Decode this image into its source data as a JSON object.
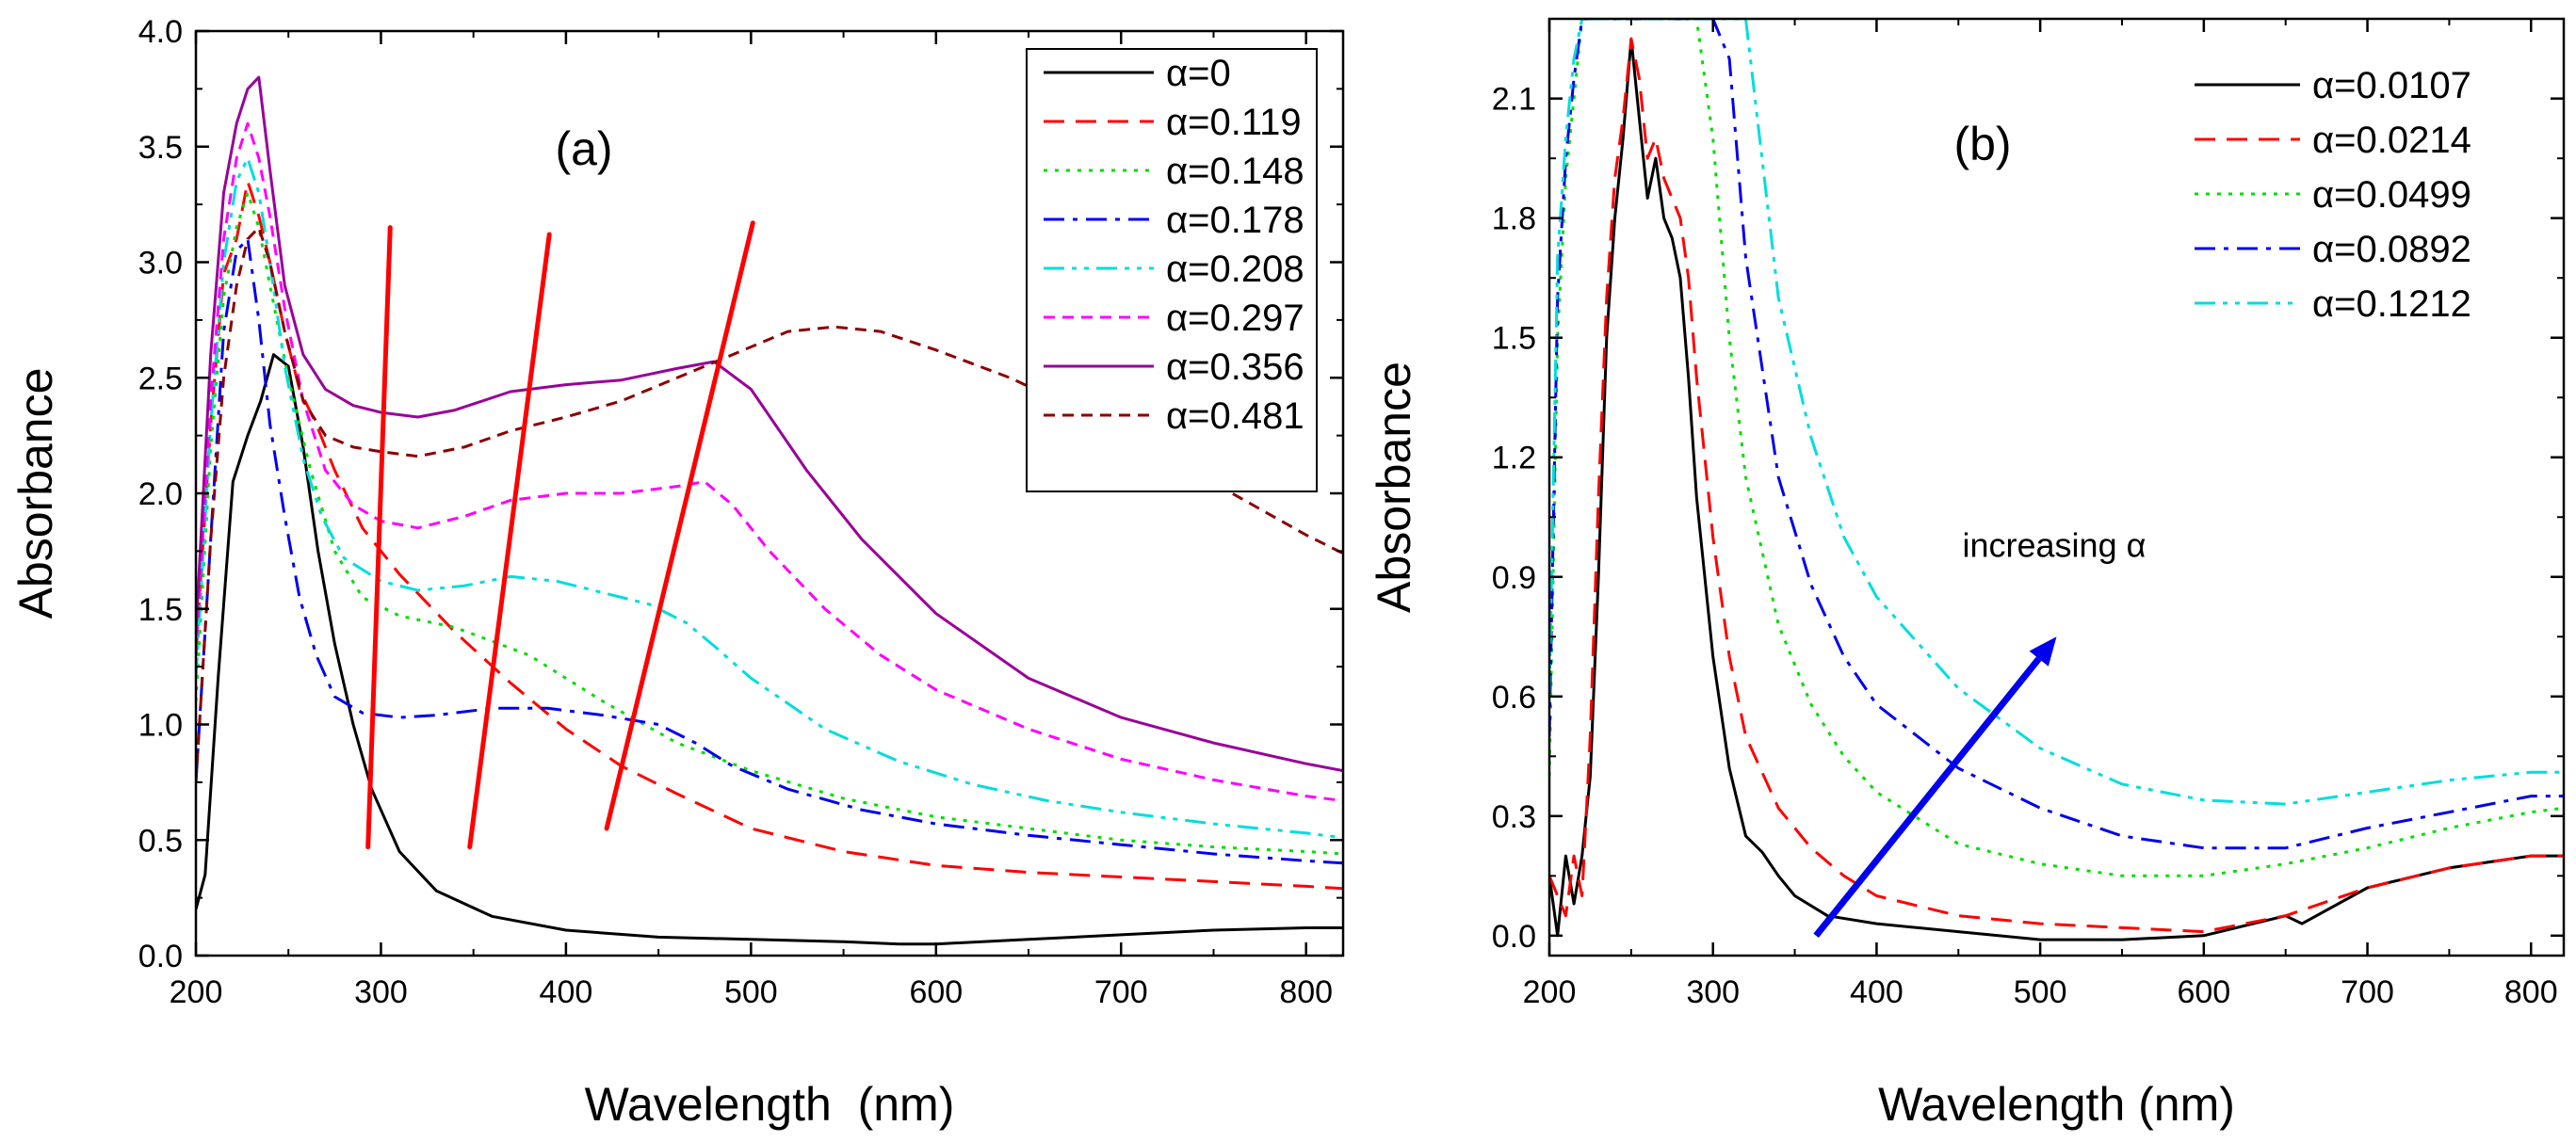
{
  "chart_data": [
    {
      "type": "line",
      "panel_label": "(a)",
      "xlabel": "Wavelength  (nm)",
      "ylabel": "Absorbance",
      "xlim": [
        200,
        820
      ],
      "ylim": [
        0,
        4.0
      ],
      "xticks": [
        200,
        300,
        400,
        500,
        600,
        700,
        800
      ],
      "xtick_labels": [
        "200",
        "300",
        "400",
        "500",
        "600",
        "700",
        "800"
      ],
      "yticks": [
        0,
        0.5,
        1.0,
        1.5,
        2.0,
        2.5,
        3.0,
        3.5,
        4.0
      ],
      "ytick_labels": [
        "0.0",
        "0.5",
        "1.0",
        "1.5",
        "2.0",
        "2.5",
        "3.0",
        "3.5",
        "4.0"
      ],
      "legend_position": "top-right",
      "legend_boxed": true,
      "series": [
        {
          "name": "α=0",
          "color": "#000000",
          "dash": "solid",
          "x": [
            200,
            205,
            212,
            220,
            228,
            235,
            242,
            250,
            258,
            266,
            275,
            285,
            295,
            310,
            330,
            360,
            400,
            450,
            500,
            550,
            580,
            600,
            650,
            700,
            750,
            800,
            820
          ],
          "y": [
            0.2,
            0.35,
            1.2,
            2.05,
            2.25,
            2.4,
            2.6,
            2.55,
            2.2,
            1.75,
            1.35,
            1.0,
            0.72,
            0.45,
            0.28,
            0.17,
            0.11,
            0.08,
            0.07,
            0.06,
            0.05,
            0.05,
            0.07,
            0.09,
            0.11,
            0.12,
            0.12
          ]
        },
        {
          "name": "α=0.119",
          "color": "#ff0000",
          "dash": "long",
          "x": [
            200,
            208,
            215,
            222,
            228,
            234,
            240,
            248,
            256,
            265,
            275,
            290,
            310,
            340,
            370,
            400,
            430,
            460,
            500,
            550,
            600,
            650,
            700,
            750,
            800,
            820
          ],
          "y": [
            1.3,
            2.3,
            2.95,
            3.1,
            3.35,
            3.2,
            3.0,
            2.7,
            2.45,
            2.3,
            2.1,
            1.85,
            1.65,
            1.4,
            1.18,
            0.98,
            0.82,
            0.7,
            0.55,
            0.45,
            0.39,
            0.36,
            0.34,
            0.32,
            0.3,
            0.29
          ]
        },
        {
          "name": "α=0.148",
          "color": "#00dd00",
          "dash": "dot",
          "x": [
            200,
            208,
            215,
            222,
            228,
            234,
            240,
            250,
            262,
            275,
            290,
            310,
            340,
            380,
            420,
            460,
            500,
            550,
            600,
            650,
            700,
            750,
            800,
            820
          ],
          "y": [
            1.1,
            2.2,
            2.85,
            3.15,
            3.3,
            3.15,
            2.9,
            2.5,
            2.1,
            1.75,
            1.55,
            1.47,
            1.42,
            1.3,
            1.1,
            0.92,
            0.8,
            0.68,
            0.6,
            0.55,
            0.5,
            0.47,
            0.45,
            0.44
          ]
        },
        {
          "name": "α=0.178",
          "color": "#0000ee",
          "dash": "dashdot",
          "x": [
            200,
            208,
            215,
            222,
            228,
            234,
            240,
            248,
            256,
            265,
            275,
            290,
            310,
            330,
            360,
            390,
            420,
            450,
            470,
            490,
            520,
            560,
            600,
            650,
            700,
            750,
            800,
            820
          ],
          "y": [
            0.75,
            1.8,
            2.7,
            3.05,
            3.1,
            2.75,
            2.3,
            1.9,
            1.55,
            1.3,
            1.12,
            1.05,
            1.03,
            1.04,
            1.07,
            1.07,
            1.04,
            1.0,
            0.92,
            0.82,
            0.72,
            0.63,
            0.57,
            0.52,
            0.48,
            0.44,
            0.41,
            0.4
          ]
        },
        {
          "name": "α=0.208",
          "color": "#00dddd",
          "dash": "dashdotdot",
          "x": [
            200,
            208,
            215,
            222,
            228,
            234,
            240,
            248,
            258,
            268,
            280,
            300,
            320,
            345,
            370,
            395,
            420,
            445,
            465,
            480,
            500,
            540,
            580,
            620,
            660,
            700,
            750,
            800,
            820
          ],
          "y": [
            1.2,
            2.3,
            3.0,
            3.35,
            3.45,
            3.3,
            3.0,
            2.55,
            2.15,
            1.9,
            1.72,
            1.62,
            1.58,
            1.6,
            1.64,
            1.62,
            1.57,
            1.52,
            1.44,
            1.34,
            1.2,
            0.98,
            0.84,
            0.74,
            0.67,
            0.62,
            0.57,
            0.53,
            0.51
          ]
        },
        {
          "name": "α=0.297",
          "color": "#ff00ff",
          "dash": "short",
          "x": [
            200,
            208,
            215,
            222,
            228,
            234,
            240,
            248,
            258,
            270,
            285,
            300,
            320,
            345,
            370,
            400,
            430,
            460,
            475,
            490,
            510,
            540,
            570,
            600,
            650,
            700,
            750,
            800,
            820
          ],
          "y": [
            1.3,
            2.4,
            3.1,
            3.45,
            3.6,
            3.45,
            3.2,
            2.8,
            2.4,
            2.1,
            1.95,
            1.88,
            1.85,
            1.9,
            1.97,
            2.0,
            2.0,
            2.03,
            2.05,
            1.95,
            1.75,
            1.5,
            1.3,
            1.15,
            0.98,
            0.85,
            0.76,
            0.69,
            0.67
          ]
        },
        {
          "name": "α=0.356",
          "color": "#990099",
          "dash": "solid",
          "x": [
            200,
            208,
            215,
            222,
            228,
            234,
            240,
            248,
            258,
            270,
            285,
            300,
            320,
            340,
            370,
            400,
            430,
            460,
            480,
            500,
            530,
            560,
            600,
            650,
            700,
            750,
            800,
            820
          ],
          "y": [
            1.4,
            2.6,
            3.3,
            3.6,
            3.75,
            3.8,
            3.4,
            2.9,
            2.6,
            2.45,
            2.38,
            2.35,
            2.33,
            2.36,
            2.44,
            2.47,
            2.49,
            2.54,
            2.57,
            2.45,
            2.1,
            1.8,
            1.48,
            1.2,
            1.03,
            0.92,
            0.83,
            0.8
          ]
        },
        {
          "name": "α=0.481",
          "color": "#8b0000",
          "dash": "short",
          "x": [
            200,
            208,
            215,
            222,
            228,
            234,
            240,
            248,
            258,
            270,
            285,
            300,
            320,
            345,
            370,
            400,
            430,
            460,
            490,
            520,
            545,
            570,
            600,
            640,
            680,
            720,
            760,
            800,
            820
          ],
          "y": [
            0.75,
            1.8,
            2.5,
            2.9,
            3.1,
            3.15,
            3.0,
            2.7,
            2.4,
            2.25,
            2.2,
            2.18,
            2.16,
            2.2,
            2.27,
            2.33,
            2.4,
            2.5,
            2.6,
            2.7,
            2.72,
            2.7,
            2.62,
            2.5,
            2.35,
            2.18,
            2.0,
            1.82,
            1.74
          ]
        }
      ],
      "annotations": {
        "red_guide_lines": [
          {
            "x": [
              293,
              305
            ],
            "y": [
              0.47,
              3.15
            ]
          },
          {
            "x": [
              348,
              391
            ],
            "y": [
              0.47,
              3.12
            ]
          },
          {
            "x": [
              422,
              501
            ],
            "y": [
              0.55,
              3.17
            ]
          }
        ]
      }
    },
    {
      "type": "line",
      "panel_label": "(b)",
      "xlabel": "Wavelength (nm)",
      "ylabel": "Absorbance",
      "xlim": [
        200,
        820
      ],
      "ylim": [
        -0.05,
        2.3
      ],
      "xticks": [
        200,
        300,
        400,
        500,
        600,
        700,
        800
      ],
      "xtick_labels": [
        "200",
        "300",
        "400",
        "500",
        "600",
        "700",
        "800"
      ],
      "yticks": [
        0.0,
        0.3,
        0.6,
        0.9,
        1.2,
        1.5,
        1.8,
        2.1
      ],
      "ytick_labels": [
        "0.0",
        "0.3",
        "0.6",
        "0.9",
        "1.2",
        "1.5",
        "1.8",
        "2.1"
      ],
      "legend_position": "top-right",
      "legend_boxed": false,
      "series": [
        {
          "name": "α=0.0107",
          "color": "#000000",
          "dash": "solid",
          "x": [
            200,
            205,
            210,
            215,
            220,
            225,
            230,
            235,
            240,
            245,
            250,
            255,
            260,
            265,
            270,
            275,
            280,
            285,
            290,
            300,
            310,
            320,
            330,
            340,
            350,
            370,
            400,
            450,
            500,
            550,
            600,
            650,
            660,
            700,
            750,
            800,
            820
          ],
          "y": [
            0.15,
            0.0,
            0.2,
            0.08,
            0.2,
            0.4,
            0.9,
            1.5,
            1.8,
            2.0,
            2.25,
            2.05,
            1.85,
            1.95,
            1.8,
            1.75,
            1.65,
            1.4,
            1.1,
            0.7,
            0.42,
            0.25,
            0.21,
            0.15,
            0.1,
            0.05,
            0.03,
            0.01,
            -0.01,
            -0.01,
            0.0,
            0.05,
            0.03,
            0.12,
            0.17,
            0.2,
            0.2
          ]
        },
        {
          "name": "α=0.0214",
          "color": "#ff0000",
          "dash": "long",
          "x": [
            200,
            210,
            215,
            220,
            225,
            230,
            235,
            240,
            245,
            250,
            255,
            260,
            265,
            270,
            275,
            280,
            285,
            290,
            300,
            310,
            320,
            340,
            360,
            380,
            400,
            450,
            500,
            550,
            600,
            650,
            700,
            750,
            800,
            820
          ],
          "y": [
            0.15,
            0.05,
            0.2,
            0.1,
            0.5,
            1.1,
            1.6,
            1.9,
            2.05,
            2.25,
            2.15,
            1.95,
            2.0,
            1.9,
            1.85,
            1.8,
            1.65,
            1.4,
            1.0,
            0.7,
            0.5,
            0.32,
            0.22,
            0.15,
            0.1,
            0.05,
            0.03,
            0.02,
            0.01,
            0.05,
            0.12,
            0.17,
            0.2,
            0.2
          ]
        },
        {
          "name": "α=0.0499",
          "color": "#00dd00",
          "dash": "dot",
          "x": [
            200,
            205,
            210,
            215,
            220,
            230,
            240,
            250,
            260,
            270,
            280,
            290,
            300,
            310,
            320,
            340,
            360,
            380,
            400,
            450,
            500,
            550,
            600,
            650,
            700,
            750,
            800,
            820
          ],
          "y": [
            0.4,
            1.5,
            1.9,
            2.1,
            2.3,
            2.3,
            2.3,
            2.3,
            2.3,
            2.3,
            2.3,
            2.3,
            2.0,
            1.5,
            1.15,
            0.78,
            0.58,
            0.45,
            0.36,
            0.23,
            0.18,
            0.15,
            0.15,
            0.18,
            0.22,
            0.27,
            0.31,
            0.32
          ]
        },
        {
          "name": "α=0.0892",
          "color": "#0000ee",
          "dash": "dashdot",
          "x": [
            200,
            205,
            210,
            215,
            220,
            230,
            240,
            250,
            260,
            270,
            280,
            290,
            300,
            310,
            320,
            340,
            360,
            380,
            400,
            450,
            500,
            550,
            600,
            650,
            700,
            750,
            800,
            820
          ],
          "y": [
            0.5,
            1.6,
            1.95,
            2.15,
            2.3,
            2.3,
            2.3,
            2.3,
            2.3,
            2.3,
            2.3,
            2.3,
            2.3,
            2.2,
            1.7,
            1.15,
            0.88,
            0.7,
            0.58,
            0.42,
            0.32,
            0.25,
            0.22,
            0.22,
            0.27,
            0.31,
            0.35,
            0.35
          ]
        },
        {
          "name": "α=0.1212",
          "color": "#00dddd",
          "dash": "dashdotdot",
          "x": [
            200,
            205,
            210,
            215,
            220,
            230,
            240,
            250,
            260,
            270,
            280,
            290,
            300,
            310,
            320,
            330,
            340,
            360,
            380,
            400,
            450,
            500,
            550,
            600,
            650,
            700,
            750,
            800,
            820
          ],
          "y": [
            0.6,
            1.7,
            2.0,
            2.2,
            2.3,
            2.3,
            2.3,
            2.3,
            2.3,
            2.3,
            2.3,
            2.3,
            2.3,
            2.3,
            2.3,
            1.95,
            1.6,
            1.25,
            1.0,
            0.85,
            0.62,
            0.47,
            0.38,
            0.34,
            0.33,
            0.36,
            0.39,
            0.41,
            0.41
          ]
        }
      ],
      "annotations": {
        "arrow": {
          "label": "increasing α",
          "from": {
            "x": 363,
            "y": 0.0
          },
          "to": {
            "x": 510,
            "y": 0.75
          }
        }
      }
    }
  ]
}
